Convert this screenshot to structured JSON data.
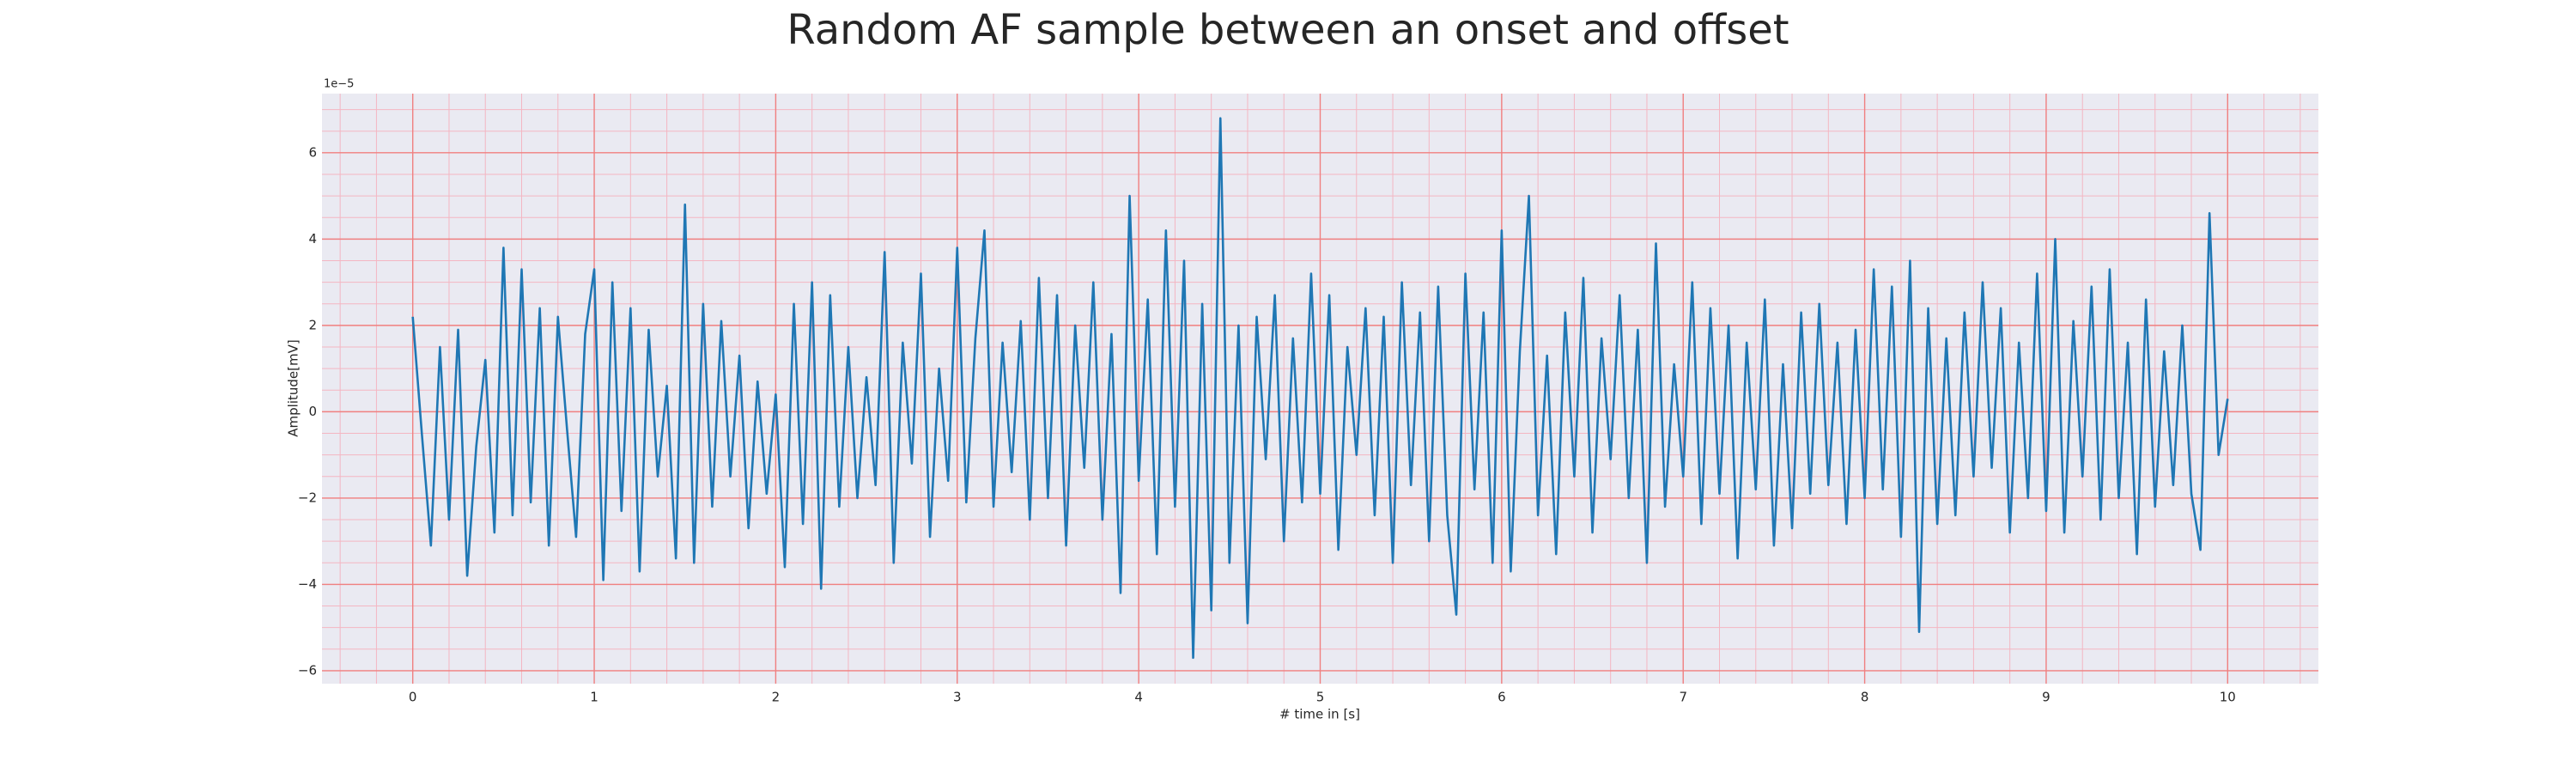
{
  "chart_data": {
    "type": "line",
    "title": "Random AF sample between an onset and offset",
    "xlabel": "# time in [s]",
    "ylabel": "Amplitude[mV]",
    "y_offset_label": "1e−5",
    "color": "#1f77b4",
    "grid": true,
    "minor_grid": true,
    "xlim": [
      -0.5,
      10.5
    ],
    "ylim": [
      -6.3,
      7.37
    ],
    "xticks": [
      0,
      1,
      2,
      3,
      4,
      5,
      6,
      7,
      8,
      9,
      10
    ],
    "yticks": [
      {
        "value": -6,
        "label": "−6"
      },
      {
        "value": -4,
        "label": "−4"
      },
      {
        "value": -2,
        "label": "−2"
      },
      0,
      2,
      4,
      6
    ],
    "x": [
      0,
      0.05,
      0.1,
      0.15,
      0.2,
      0.25,
      0.3,
      0.35,
      0.4,
      0.45,
      0.5,
      0.55,
      0.6,
      0.65,
      0.7,
      0.75,
      0.8,
      0.85,
      0.9,
      0.95,
      1,
      1.05,
      1.1,
      1.15,
      1.2,
      1.25,
      1.3,
      1.35,
      1.4,
      1.45,
      1.5,
      1.55,
      1.6,
      1.65,
      1.7,
      1.75,
      1.8,
      1.85,
      1.9,
      1.95,
      2,
      2.05,
      2.1,
      2.15,
      2.2,
      2.25,
      2.3,
      2.35,
      2.4,
      2.45,
      2.5,
      2.55,
      2.6,
      2.65,
      2.7,
      2.75,
      2.8,
      2.85,
      2.9,
      2.95,
      3,
      3.05,
      3.1,
      3.15,
      3.2,
      3.25,
      3.3,
      3.35,
      3.4,
      3.45,
      3.5,
      3.55,
      3.6,
      3.65,
      3.7,
      3.75,
      3.8,
      3.85,
      3.9,
      3.95,
      4,
      4.05,
      4.1,
      4.15,
      4.2,
      4.25,
      4.3,
      4.35,
      4.4,
      4.45,
      4.5,
      4.55,
      4.6,
      4.65,
      4.7,
      4.75,
      4.8,
      4.85,
      4.9,
      4.95,
      5,
      5.05,
      5.1,
      5.15,
      5.2,
      5.25,
      5.3,
      5.35,
      5.4,
      5.45,
      5.5,
      5.55,
      5.6,
      5.65,
      5.7,
      5.75,
      5.8,
      5.85,
      5.9,
      5.95,
      6,
      6.05,
      6.1,
      6.15,
      6.2,
      6.25,
      6.3,
      6.35,
      6.4,
      6.45,
      6.5,
      6.55,
      6.6,
      6.65,
      6.7,
      6.75,
      6.8,
      6.85,
      6.9,
      6.95,
      7,
      7.05,
      7.1,
      7.15,
      7.2,
      7.25,
      7.3,
      7.35,
      7.4,
      7.45,
      7.5,
      7.55,
      7.6,
      7.65,
      7.7,
      7.75,
      7.8,
      7.85,
      7.9,
      7.95,
      8,
      8.05,
      8.1,
      8.15,
      8.2,
      8.25,
      8.3,
      8.35,
      8.4,
      8.45,
      8.5,
      8.55,
      8.6,
      8.65,
      8.7,
      8.75,
      8.8,
      8.85,
      8.9,
      8.95,
      9,
      9.05,
      9.1,
      9.15,
      9.2,
      9.25,
      9.3,
      9.35,
      9.4,
      9.45,
      9.5,
      9.55,
      9.6,
      9.65,
      9.7,
      9.75,
      9.8,
      9.85,
      9.9,
      9.95,
      10
    ],
    "values": [
      2.2,
      -0.5,
      -3.1,
      1.5,
      -2.5,
      1.9,
      -3.8,
      -0.8,
      1.2,
      -2.8,
      3.8,
      -2.4,
      3.3,
      -2.1,
      2.4,
      -3.1,
      2.2,
      -0.4,
      -2.9,
      1.8,
      3.3,
      -3.9,
      3.0,
      -2.3,
      2.4,
      -3.7,
      1.9,
      -1.5,
      0.6,
      -3.4,
      4.8,
      -3.5,
      2.5,
      -2.2,
      2.1,
      -1.5,
      1.3,
      -2.7,
      0.7,
      -1.9,
      0.4,
      -3.6,
      2.5,
      -2.6,
      3.0,
      -4.1,
      2.7,
      -2.2,
      1.5,
      -2.0,
      0.8,
      -1.7,
      3.7,
      -3.5,
      1.6,
      -1.2,
      3.2,
      -2.9,
      1.0,
      -1.6,
      3.8,
      -2.1,
      1.7,
      4.2,
      -2.2,
      1.6,
      -1.4,
      2.1,
      -2.5,
      3.1,
      -2.0,
      2.7,
      -3.1,
      2.0,
      -1.3,
      3.0,
      -2.5,
      1.8,
      -4.2,
      5.0,
      -1.6,
      2.6,
      -3.3,
      4.2,
      -2.2,
      3.5,
      -5.7,
      2.5,
      -4.6,
      6.8,
      -3.5,
      2.0,
      -4.9,
      2.2,
      -1.1,
      2.7,
      -3.0,
      1.7,
      -2.1,
      3.2,
      -1.9,
      2.7,
      -3.2,
      1.5,
      -1.0,
      2.4,
      -2.4,
      2.2,
      -3.5,
      3.0,
      -1.7,
      2.3,
      -3.0,
      2.9,
      -2.4,
      -4.7,
      3.2,
      -1.8,
      2.3,
      -3.5,
      4.2,
      -3.7,
      1.4,
      5.0,
      -2.4,
      1.3,
      -3.3,
      2.3,
      -1.5,
      3.1,
      -2.8,
      1.7,
      -1.1,
      2.7,
      -2.0,
      1.9,
      -3.5,
      3.9,
      -2.2,
      1.1,
      -1.5,
      3.0,
      -2.6,
      2.4,
      -1.9,
      2.0,
      -3.4,
      1.6,
      -1.8,
      2.6,
      -3.1,
      1.1,
      -2.7,
      2.3,
      -1.9,
      2.5,
      -1.7,
      1.6,
      -2.6,
      1.9,
      -2.0,
      3.3,
      -1.8,
      2.9,
      -2.9,
      3.5,
      -5.1,
      2.4,
      -2.6,
      1.7,
      -2.4,
      2.3,
      -1.5,
      3.0,
      -1.3,
      2.4,
      -2.8,
      1.6,
      -2.0,
      3.2,
      -2.3,
      4.0,
      -2.8,
      2.1,
      -1.5,
      2.9,
      -2.5,
      3.3,
      -2.0,
      1.6,
      -3.3,
      2.6,
      -2.2,
      1.4,
      -1.7,
      2.0,
      -1.9,
      -3.2,
      4.6,
      -1.0,
      0.3
    ]
  }
}
